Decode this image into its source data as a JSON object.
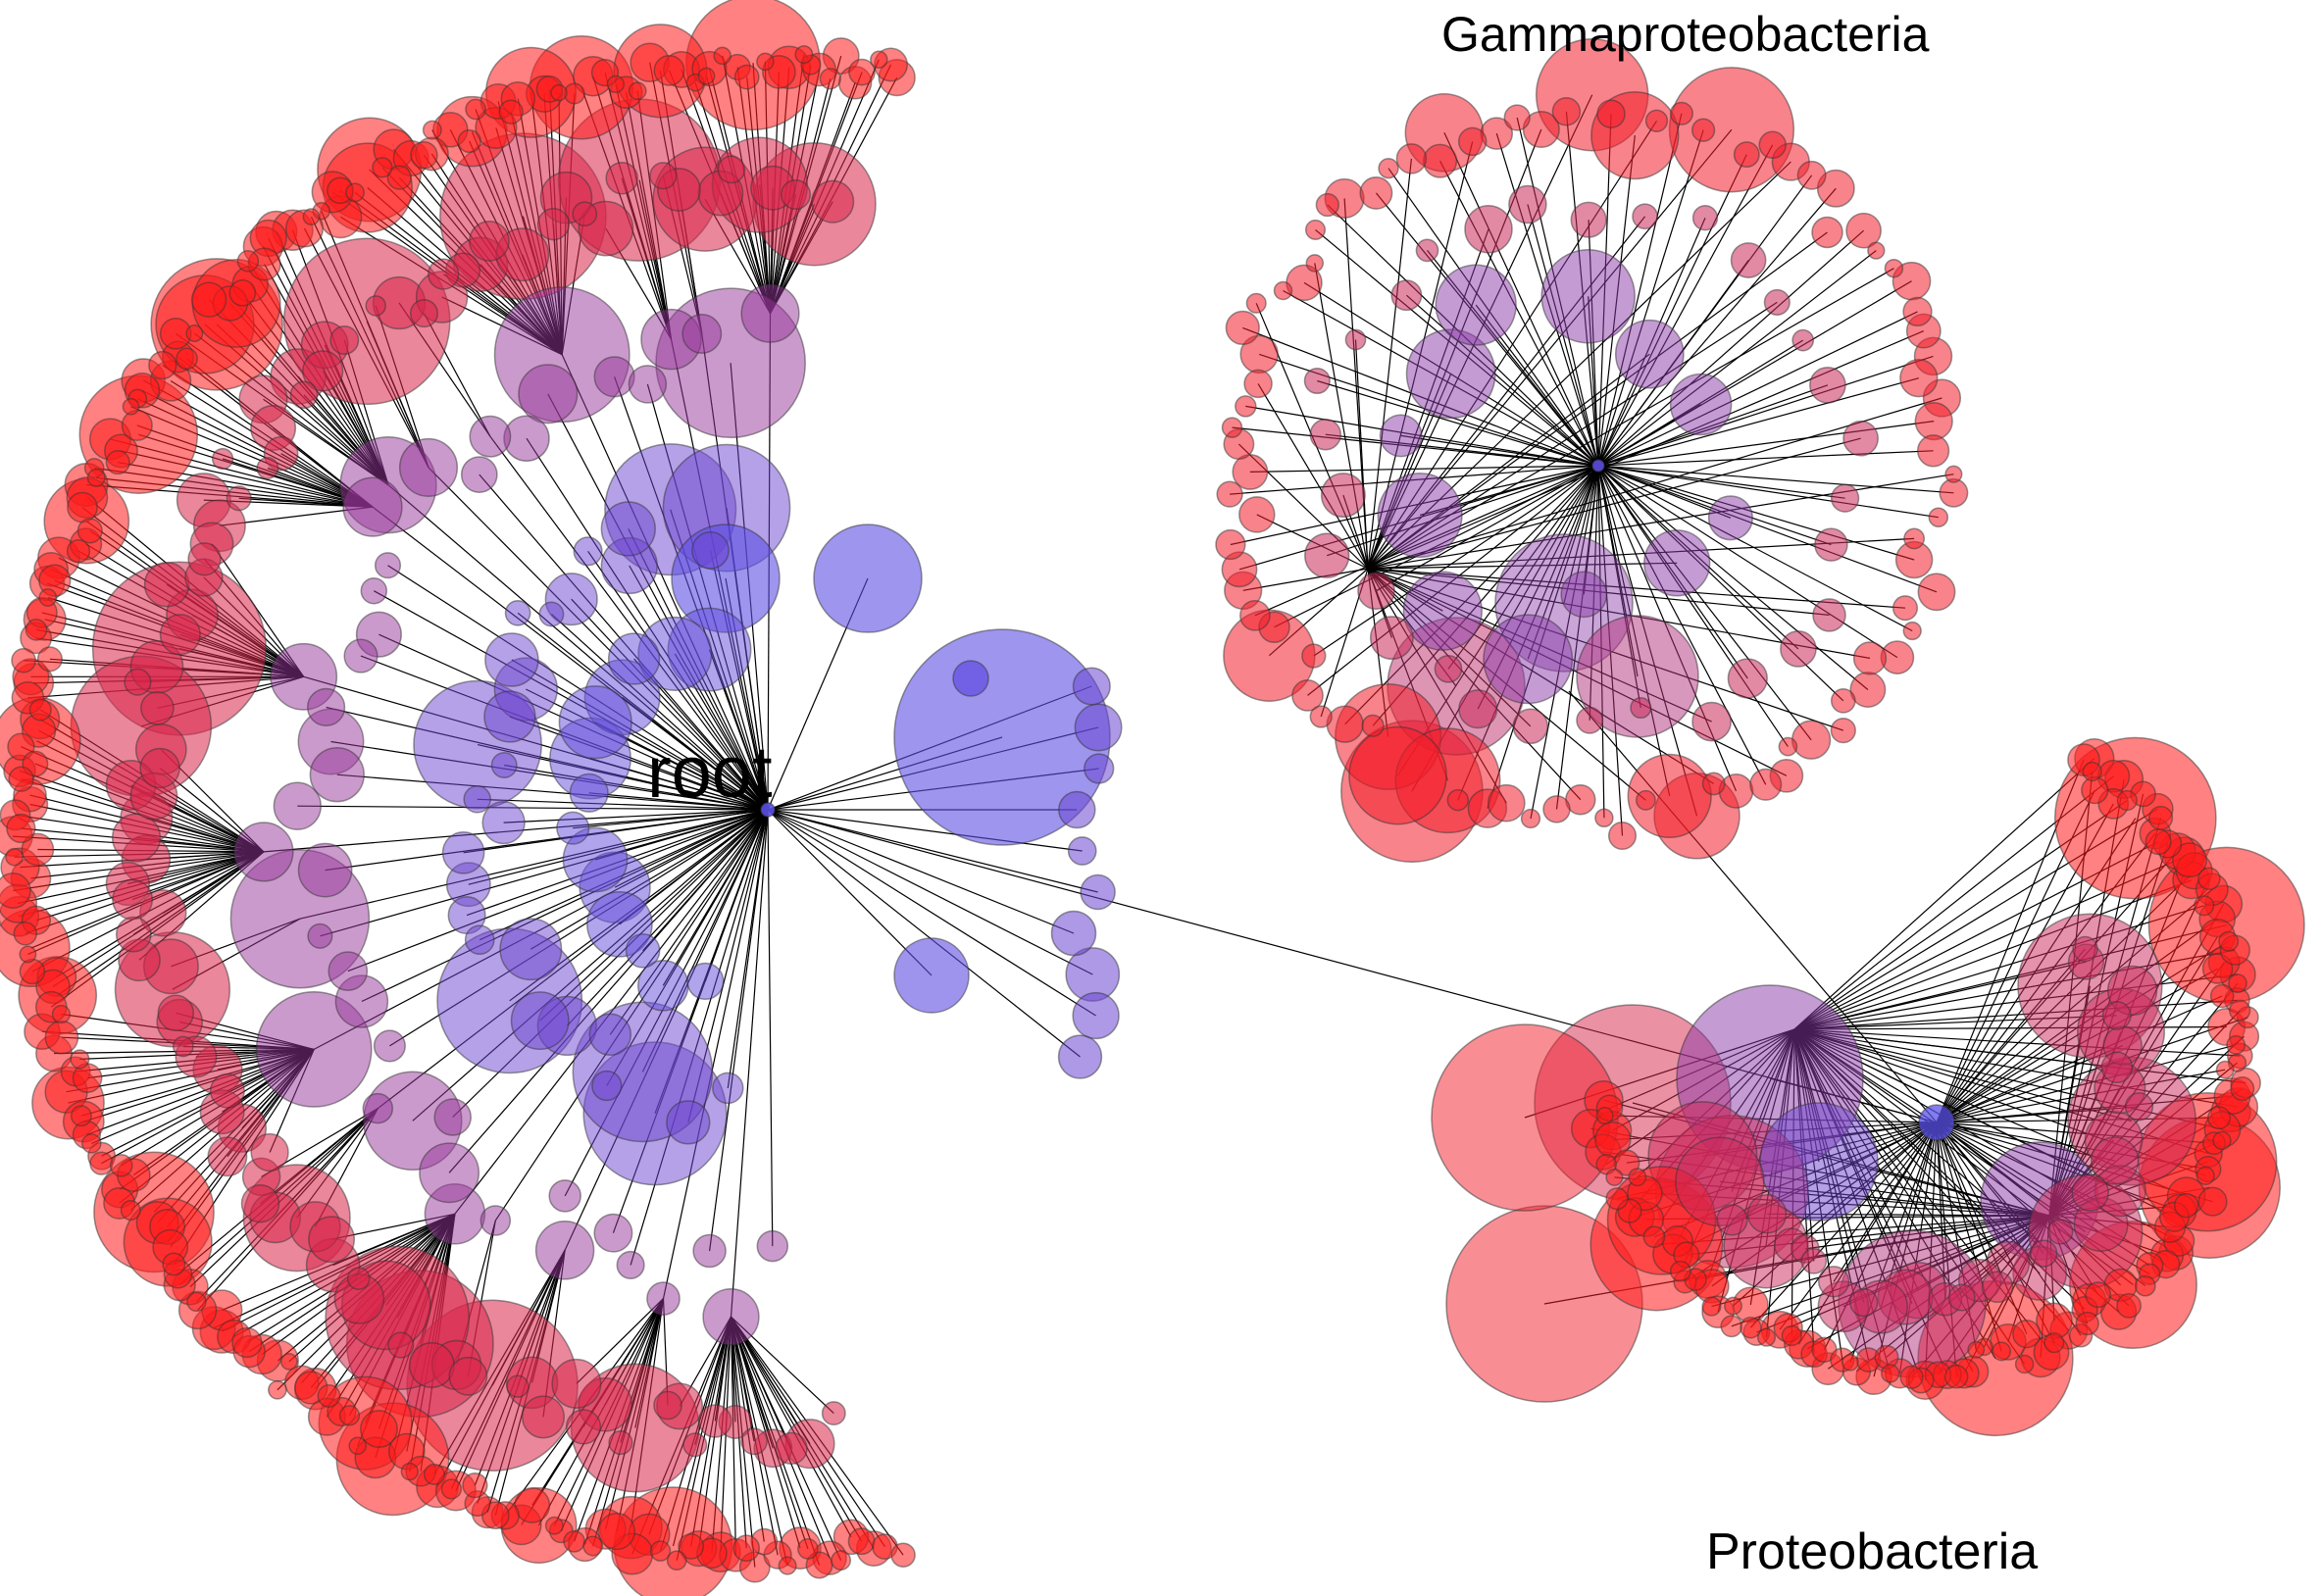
{
  "labels": {
    "root": "root",
    "gamma": "Gammaproteobacteria",
    "proteo": "Proteobacteria"
  },
  "colors": {
    "leaf": "#ff1a1a",
    "inner": "#7040c8",
    "core": "#5a50e6",
    "edge": "#000000",
    "background": "#ffffff"
  }
}
